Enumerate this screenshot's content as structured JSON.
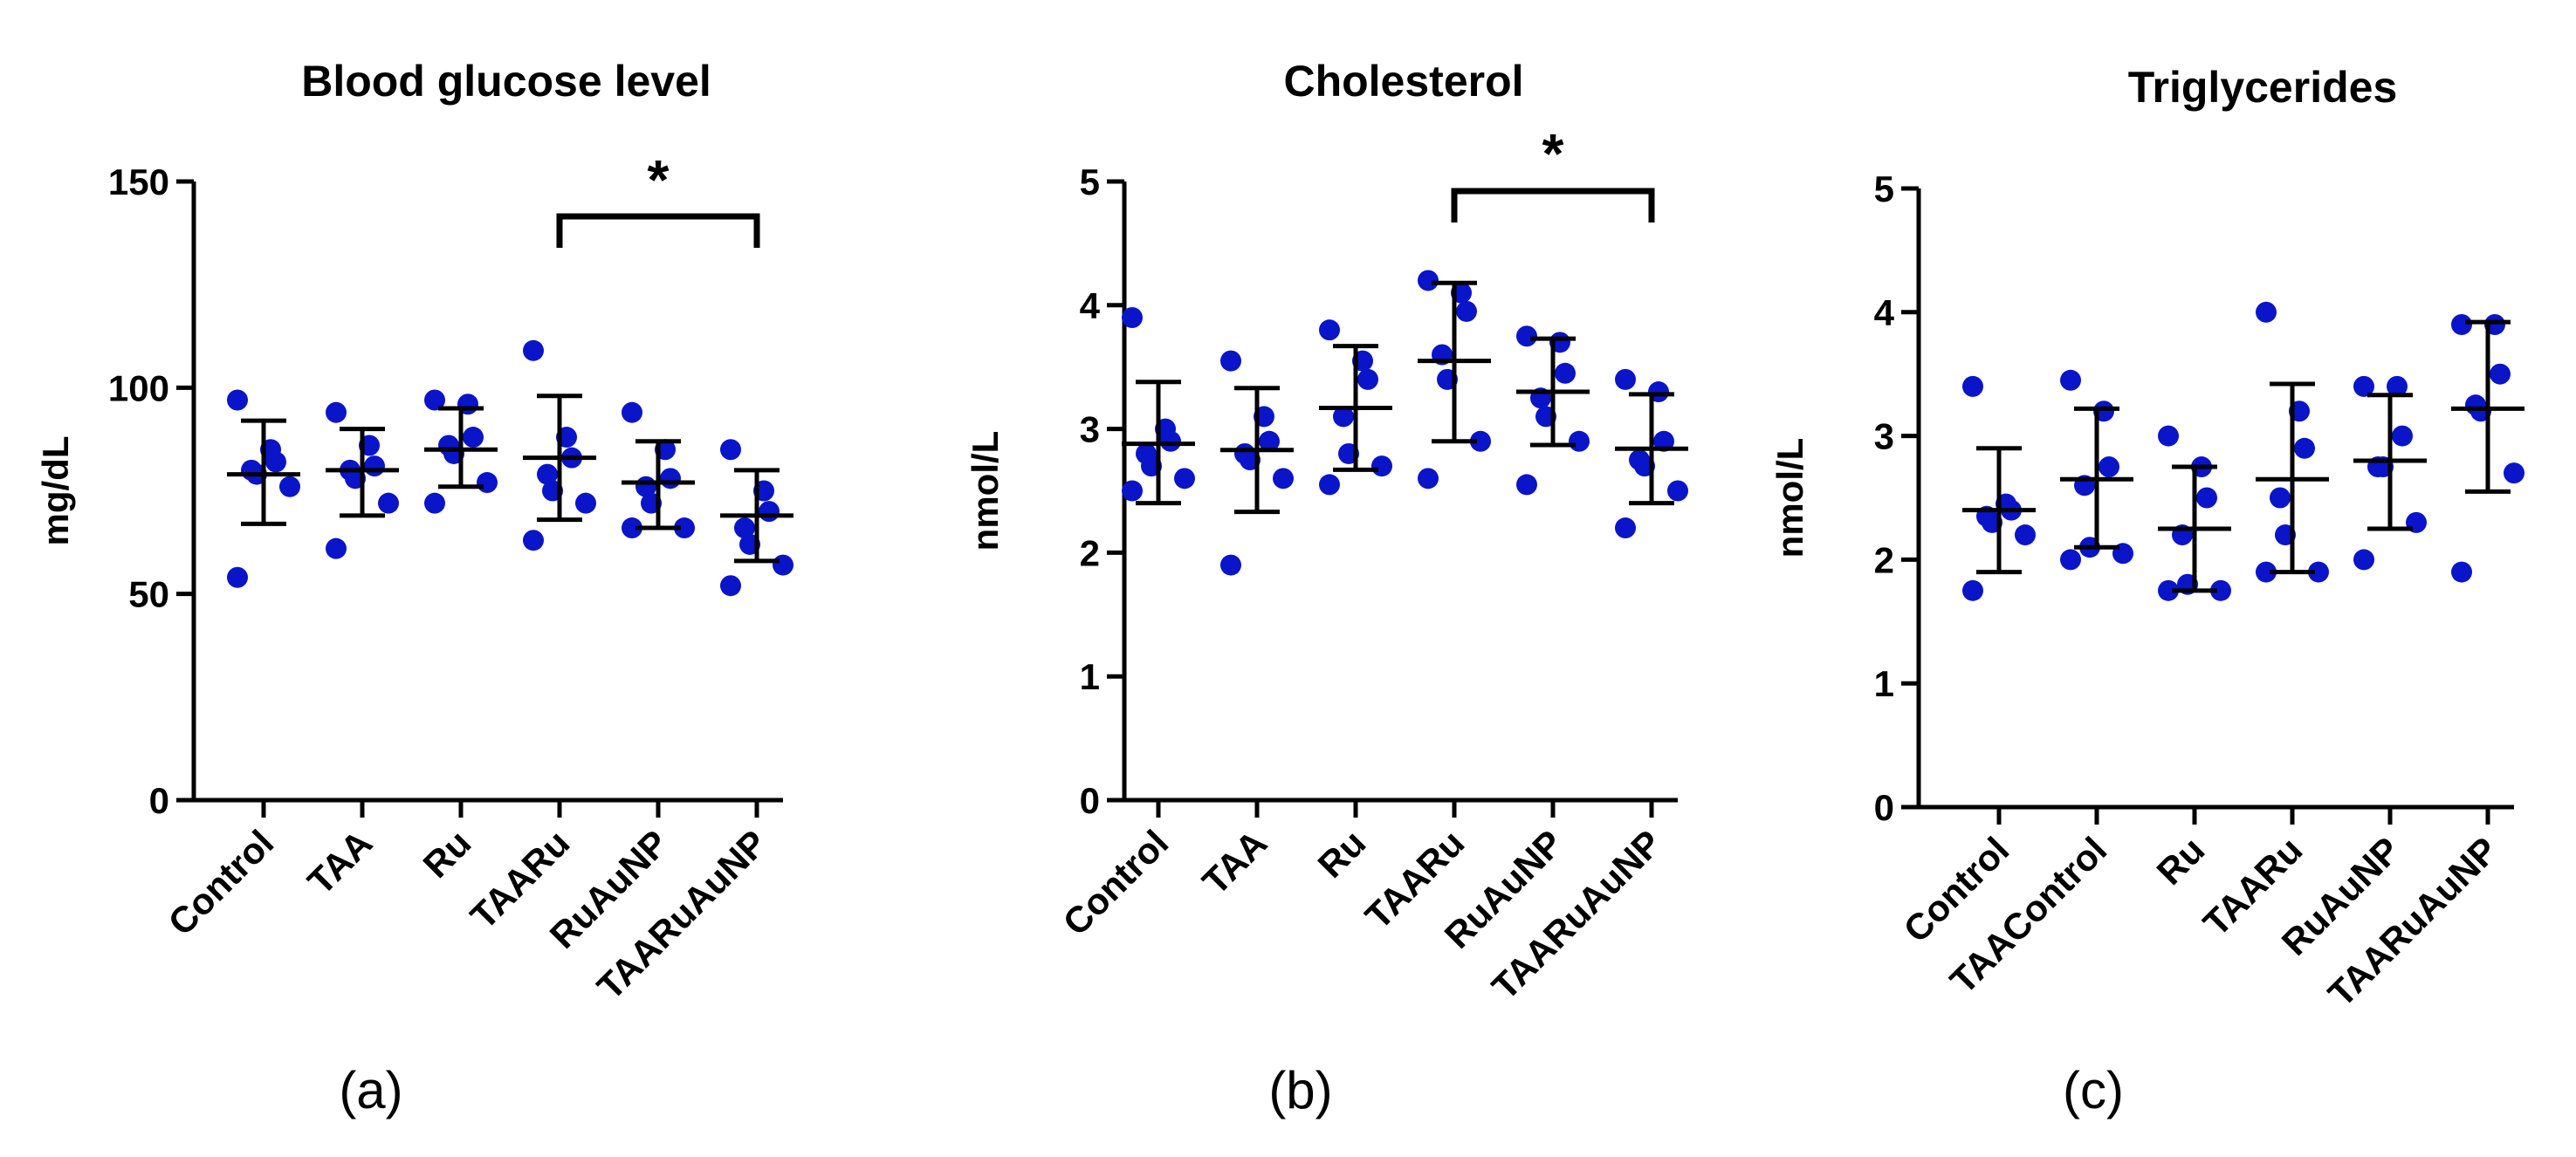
{
  "chart_data": [
    {
      "type": "scatter",
      "title": "Blood glucose level",
      "ylabel": "mg/dL",
      "panel_label": "(a)",
      "ylim": [
        0,
        150
      ],
      "yticks": [
        "0",
        "50",
        "100",
        "150"
      ],
      "categories": [
        "Control",
        "TAA",
        "Ru",
        "TAARu",
        "RuAuNP",
        "TAARuAuNP"
      ],
      "points": [
        [
          97,
          85,
          82,
          80,
          79,
          76,
          54
        ],
        [
          94,
          86,
          81,
          80,
          78,
          72,
          61
        ],
        [
          97,
          96,
          88,
          86,
          84,
          77,
          72
        ],
        [
          109,
          88,
          83,
          79,
          75,
          72,
          63
        ],
        [
          94,
          85,
          78,
          76,
          72,
          66,
          66
        ],
        [
          85,
          75,
          70,
          66,
          62,
          57,
          52
        ]
      ],
      "mean": [
        79,
        80,
        85,
        83,
        77,
        69
      ],
      "sd_low": [
        67,
        69,
        76,
        68,
        66,
        58
      ],
      "sd_high": [
        92,
        90,
        95,
        98,
        87,
        80
      ],
      "annotation": {
        "text": "*",
        "from": "TAARu",
        "to": "TAARuAuNP"
      },
      "grid": false,
      "marker_color": "#0a14c8"
    },
    {
      "type": "scatter",
      "title": "Cholesterol",
      "ylabel": "nmol/L",
      "panel_label": "(b)",
      "ylim": [
        0,
        5
      ],
      "yticks": [
        "0",
        "1",
        "2",
        "3",
        "4",
        "5"
      ],
      "categories": [
        "Control",
        "TAA",
        "Ru",
        "TAARu",
        "RuAuNP",
        "TAARuAuNP"
      ],
      "points": [
        [
          3.9,
          3.0,
          2.9,
          2.8,
          2.7,
          2.6,
          2.5
        ],
        [
          3.55,
          3.1,
          2.9,
          2.8,
          2.75,
          2.6,
          1.9
        ],
        [
          3.8,
          3.55,
          3.4,
          3.1,
          2.8,
          2.7,
          2.55
        ],
        [
          4.2,
          4.1,
          3.95,
          3.6,
          3.4,
          2.9,
          2.6
        ],
        [
          3.75,
          3.7,
          3.45,
          3.25,
          3.1,
          2.9,
          2.55
        ],
        [
          3.4,
          3.3,
          2.9,
          2.75,
          2.7,
          2.5,
          2.2
        ]
      ],
      "mean": [
        2.88,
        2.83,
        3.17,
        3.55,
        3.3,
        2.84
      ],
      "sd_low": [
        2.4,
        2.33,
        2.67,
        2.9,
        2.87,
        2.4
      ],
      "sd_high": [
        3.38,
        3.33,
        3.67,
        4.18,
        3.73,
        3.28
      ],
      "annotation": {
        "text": "*",
        "from": "TAARu",
        "to": "TAARuAuNP"
      },
      "grid": false,
      "marker_color": "#0a14c8"
    },
    {
      "type": "scatter",
      "title": "Triglycerides",
      "ylabel": "nmol/L",
      "panel_label": "(c)",
      "ylim": [
        0,
        5
      ],
      "yticks": [
        "0",
        "1",
        "2",
        "3",
        "4",
        "5"
      ],
      "categories": [
        "Control",
        "TAAControl",
        "Ru",
        "TAARu",
        "RuAuNP",
        "TAARuAuNP"
      ],
      "points": [
        [
          3.4,
          2.45,
          2.4,
          2.35,
          2.3,
          2.2,
          1.75
        ],
        [
          3.45,
          3.2,
          2.75,
          2.6,
          2.1,
          2.05,
          2.0
        ],
        [
          3.0,
          2.75,
          2.5,
          2.2,
          1.8,
          1.75,
          1.75
        ],
        [
          4.0,
          3.2,
          2.9,
          2.5,
          2.2,
          1.9,
          1.9
        ],
        [
          3.4,
          3.4,
          3.0,
          2.75,
          2.75,
          2.3,
          2.0
        ],
        [
          3.9,
          3.9,
          3.5,
          3.25,
          3.2,
          2.7,
          1.9
        ]
      ],
      "mean": [
        2.4,
        2.65,
        2.25,
        2.65,
        2.8,
        3.22
      ],
      "sd_low": [
        1.9,
        2.1,
        1.75,
        1.9,
        2.25,
        2.55
      ],
      "sd_high": [
        2.9,
        3.22,
        2.75,
        3.42,
        3.33,
        3.92
      ],
      "grid": false,
      "marker_color": "#0a14c8"
    }
  ]
}
